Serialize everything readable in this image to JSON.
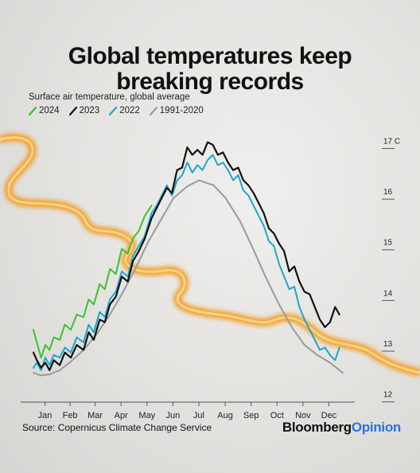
{
  "title_line1": "Global temperatures keep",
  "title_line2": "breaking records",
  "subtitle": "Surface air temperature, global average",
  "source": "Source: Copernicus Climate Change Service",
  "brand": {
    "part1": "Bloomberg",
    "part2": "Opinion",
    "part2_color": "#2b73d9"
  },
  "colors": {
    "fire": "#f6a12b",
    "fire_core": "#ffe08a"
  },
  "chart_data": {
    "type": "line",
    "title": "Global temperatures keep breaking records",
    "subtitle": "Surface air temperature, global average",
    "xlabel": "",
    "ylabel": "",
    "x_ticks": [
      "Jan",
      "Feb",
      "Mar",
      "Apr",
      "May",
      "Jun",
      "Jul",
      "Aug",
      "Sep",
      "Oct",
      "Nov",
      "Dec"
    ],
    "y_ticks": [
      {
        "value": 12,
        "label": "12"
      },
      {
        "value": 13,
        "label": "13"
      },
      {
        "value": 14,
        "label": "14"
      },
      {
        "value": 15,
        "label": "15"
      },
      {
        "value": 16,
        "label": "16"
      },
      {
        "value": 17,
        "label": "17 C"
      }
    ],
    "xlim": [
      1,
      366
    ],
    "ylim": [
      11.9,
      17.4
    ],
    "grid": false,
    "legend_position": "top-left",
    "series": [
      {
        "name": "1991-2020",
        "color": "#9a9a9a",
        "width": 2,
        "x": [
          1,
          10,
          20,
          32,
          45,
          60,
          75,
          91,
          105,
          121,
          135,
          152,
          166,
          182,
          196,
          213,
          227,
          244,
          258,
          274,
          290,
          305,
          320,
          335,
          350,
          365
        ],
        "y": [
          12.4,
          12.35,
          12.37,
          12.45,
          12.62,
          12.85,
          13.15,
          13.55,
          13.95,
          14.45,
          14.95,
          15.45,
          15.85,
          16.08,
          16.2,
          16.1,
          15.85,
          15.4,
          14.9,
          14.3,
          13.75,
          13.3,
          12.95,
          12.75,
          12.6,
          12.4
        ]
      },
      {
        "name": "2022",
        "color": "#1fa6cc",
        "width": 2,
        "x": [
          1,
          5,
          10,
          15,
          20,
          25,
          32,
          38,
          45,
          52,
          60,
          66,
          72,
          79,
          85,
          91,
          98,
          105,
          112,
          118,
          125,
          132,
          140,
          146,
          152,
          158,
          164,
          170,
          176,
          182,
          188,
          194,
          200,
          206,
          212,
          218,
          224,
          230,
          236,
          242,
          248,
          254,
          260,
          266,
          272,
          278,
          284,
          290,
          296,
          302,
          308,
          314,
          320,
          326,
          332,
          338,
          344,
          350,
          356,
          361
        ],
        "y": [
          12.5,
          12.6,
          12.45,
          12.7,
          12.55,
          12.75,
          12.7,
          12.9,
          12.8,
          13.1,
          13.0,
          13.35,
          13.2,
          13.6,
          13.5,
          13.85,
          14.0,
          14.4,
          14.3,
          14.7,
          14.9,
          15.1,
          15.55,
          15.7,
          15.9,
          16.1,
          15.9,
          16.2,
          16.3,
          16.55,
          16.35,
          16.5,
          16.4,
          16.6,
          16.7,
          16.5,
          16.55,
          16.4,
          16.2,
          16.3,
          16.0,
          15.9,
          15.7,
          15.5,
          15.3,
          15.0,
          14.9,
          14.55,
          14.3,
          14.05,
          14.1,
          13.7,
          13.45,
          13.25,
          13.05,
          12.85,
          12.9,
          12.75,
          12.65,
          12.9
        ]
      },
      {
        "name": "2023",
        "color": "#111111",
        "width": 2.2,
        "x": [
          1,
          5,
          10,
          15,
          20,
          25,
          32,
          38,
          45,
          52,
          60,
          66,
          72,
          79,
          85,
          91,
          98,
          105,
          112,
          118,
          125,
          132,
          140,
          146,
          152,
          158,
          164,
          170,
          176,
          182,
          188,
          194,
          200,
          206,
          212,
          218,
          224,
          230,
          236,
          242,
          248,
          254,
          260,
          266,
          272,
          278,
          284,
          290,
          296,
          302,
          308,
          314,
          320,
          326,
          332,
          338,
          344,
          350,
          356,
          361
        ],
        "y": [
          12.8,
          12.65,
          12.5,
          12.6,
          12.45,
          12.65,
          12.55,
          12.8,
          12.7,
          12.95,
          12.85,
          13.2,
          13.05,
          13.45,
          13.4,
          13.75,
          13.9,
          14.3,
          14.2,
          14.6,
          14.8,
          15.05,
          15.45,
          15.65,
          15.85,
          16.05,
          15.95,
          16.4,
          16.45,
          16.85,
          16.7,
          16.8,
          16.7,
          16.95,
          16.9,
          16.7,
          16.75,
          16.55,
          16.4,
          16.45,
          16.2,
          16.1,
          15.95,
          15.75,
          15.55,
          15.25,
          15.15,
          14.95,
          14.8,
          14.4,
          14.5,
          14.2,
          14.0,
          13.95,
          13.7,
          13.45,
          13.3,
          13.4,
          13.7,
          13.55
        ]
      },
      {
        "name": "2024",
        "color": "#3cc12c",
        "width": 2,
        "x": [
          1,
          5,
          10,
          15,
          20,
          25,
          32,
          38,
          45,
          52,
          60,
          66,
          72,
          79,
          85,
          91,
          98,
          105,
          112,
          118,
          125,
          132,
          140
        ],
        "y": [
          13.25,
          13.0,
          12.7,
          12.95,
          12.85,
          13.1,
          13.05,
          13.35,
          13.25,
          13.55,
          13.5,
          13.85,
          13.75,
          14.15,
          14.05,
          14.45,
          14.35,
          14.85,
          14.75,
          15.05,
          15.2,
          15.5,
          15.7
        ]
      }
    ]
  }
}
